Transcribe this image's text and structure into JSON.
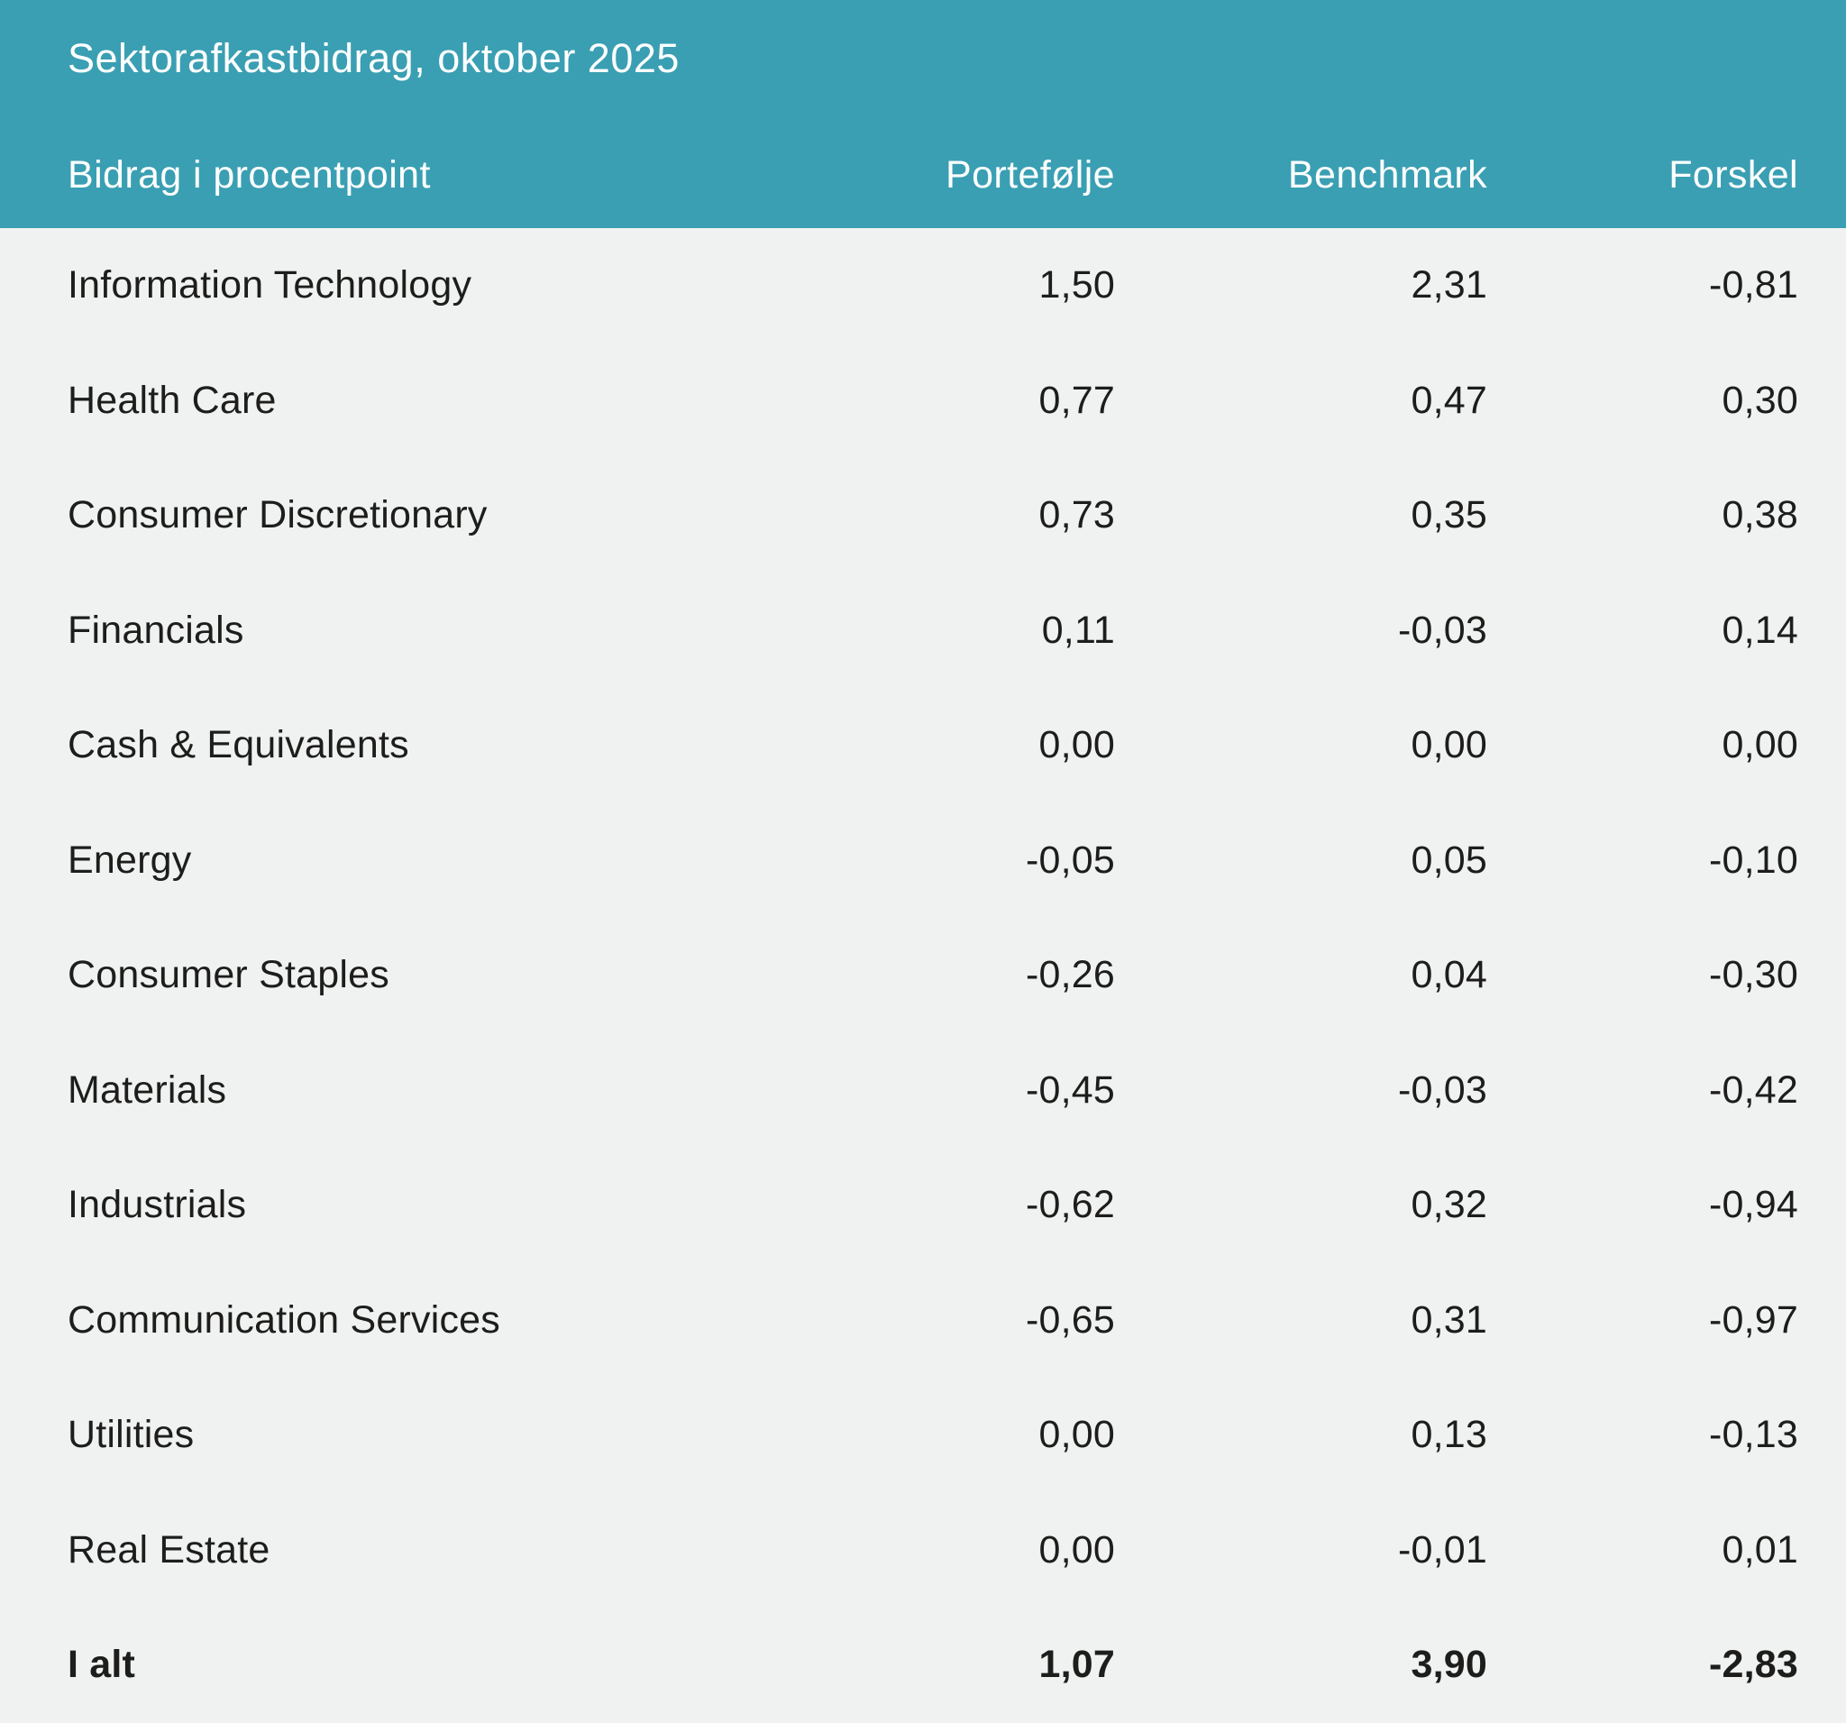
{
  "colors": {
    "header_background": "#3A9FB3",
    "body_background": "#F0F1F1",
    "header_text": "#FFFFFF",
    "body_text": "#1D1D1B"
  },
  "header": {
    "title": "Sektorafkastbidrag, oktober 2025"
  },
  "table": {
    "columns": {
      "label": "Bidrag i procentpoint",
      "portefolje": "Portefølje",
      "benchmark": "Benchmark",
      "forskel": "Forskel"
    },
    "rows": [
      {
        "label": "Information Technology",
        "portefolje": "1,50",
        "benchmark": "2,31",
        "forskel": "-0,81"
      },
      {
        "label": "Health Care",
        "portefolje": "0,77",
        "benchmark": "0,47",
        "forskel": "0,30"
      },
      {
        "label": "Consumer Discretionary",
        "portefolje": "0,73",
        "benchmark": "0,35",
        "forskel": "0,38"
      },
      {
        "label": "Financials",
        "portefolje": "0,11",
        "benchmark": "-0,03",
        "forskel": "0,14"
      },
      {
        "label": "Cash & Equivalents",
        "portefolje": "0,00",
        "benchmark": "0,00",
        "forskel": "0,00"
      },
      {
        "label": "Energy",
        "portefolje": "-0,05",
        "benchmark": "0,05",
        "forskel": "-0,10"
      },
      {
        "label": "Consumer Staples",
        "portefolje": "-0,26",
        "benchmark": "0,04",
        "forskel": "-0,30"
      },
      {
        "label": "Materials",
        "portefolje": "-0,45",
        "benchmark": "-0,03",
        "forskel": "-0,42"
      },
      {
        "label": "Industrials",
        "portefolje": "-0,62",
        "benchmark": "0,32",
        "forskel": "-0,94"
      },
      {
        "label": "Communication Services",
        "portefolje": "-0,65",
        "benchmark": "0,31",
        "forskel": "-0,97"
      },
      {
        "label": "Utilities",
        "portefolje": "0,00",
        "benchmark": "0,13",
        "forskel": "-0,13"
      },
      {
        "label": "Real Estate",
        "portefolje": "0,00",
        "benchmark": "-0,01",
        "forskel": "0,01"
      }
    ],
    "total": {
      "label": "I alt",
      "portefolje": "1,07",
      "benchmark": "3,90",
      "forskel": "-2,83"
    }
  },
  "chart_data": {
    "type": "table",
    "title": "Sektorafkastbidrag, oktober 2025",
    "subtitle": "Bidrag i procentpoint",
    "decimal_separator": ",",
    "columns": [
      "Bidrag i procentpoint",
      "Portefølje",
      "Benchmark",
      "Forskel"
    ],
    "rows": [
      {
        "sector": "Information Technology",
        "portefolje": 1.5,
        "benchmark": 2.31,
        "forskel": -0.81
      },
      {
        "sector": "Health Care",
        "portefolje": 0.77,
        "benchmark": 0.47,
        "forskel": 0.3
      },
      {
        "sector": "Consumer Discretionary",
        "portefolje": 0.73,
        "benchmark": 0.35,
        "forskel": 0.38
      },
      {
        "sector": "Financials",
        "portefolje": 0.11,
        "benchmark": -0.03,
        "forskel": 0.14
      },
      {
        "sector": "Cash & Equivalents",
        "portefolje": 0.0,
        "benchmark": 0.0,
        "forskel": 0.0
      },
      {
        "sector": "Energy",
        "portefolje": -0.05,
        "benchmark": 0.05,
        "forskel": -0.1
      },
      {
        "sector": "Consumer Staples",
        "portefolje": -0.26,
        "benchmark": 0.04,
        "forskel": -0.3
      },
      {
        "sector": "Materials",
        "portefolje": -0.45,
        "benchmark": -0.03,
        "forskel": -0.42
      },
      {
        "sector": "Industrials",
        "portefolje": -0.62,
        "benchmark": 0.32,
        "forskel": -0.94
      },
      {
        "sector": "Communication Services",
        "portefolje": -0.65,
        "benchmark": 0.31,
        "forskel": -0.97
      },
      {
        "sector": "Utilities",
        "portefolje": 0.0,
        "benchmark": 0.13,
        "forskel": -0.13
      },
      {
        "sector": "Real Estate",
        "portefolje": 0.0,
        "benchmark": -0.01,
        "forskel": 0.01
      }
    ],
    "total": {
      "sector": "I alt",
      "portefolje": 1.07,
      "benchmark": 3.9,
      "forskel": -2.83
    }
  }
}
